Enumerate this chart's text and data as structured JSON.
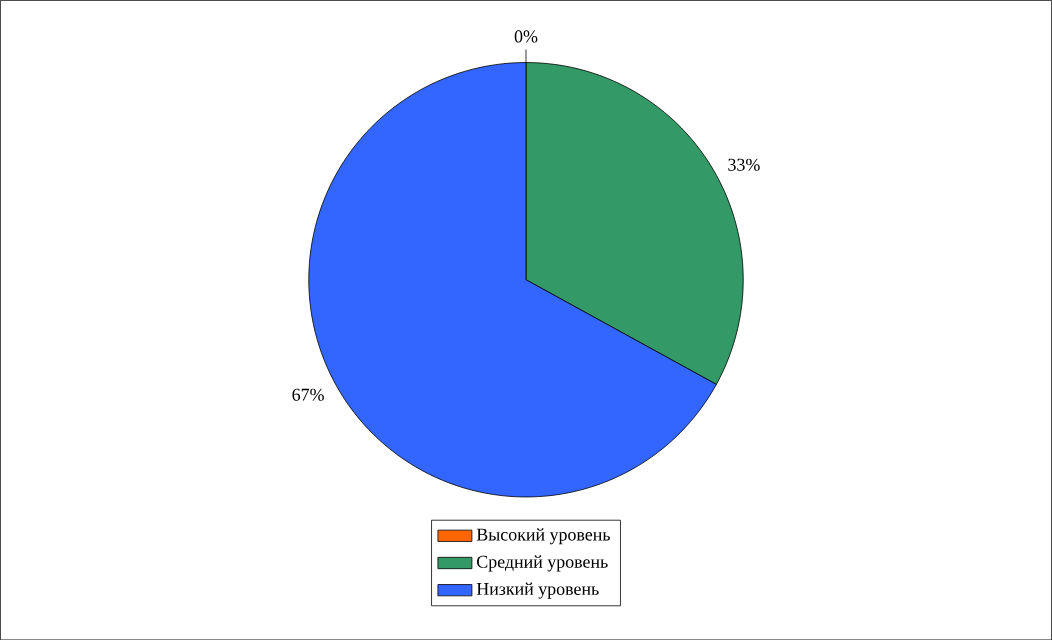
{
  "chart_data": {
    "type": "pie",
    "categories": [
      "Высокий уровень",
      "Средний уровень",
      "Низкий уровень"
    ],
    "values": [
      0,
      33,
      67
    ],
    "colors": [
      "#ff6600",
      "#339966",
      "#3366ff"
    ],
    "value_labels": [
      "0%",
      "33%",
      "67%"
    ],
    "legend": "bottom"
  }
}
